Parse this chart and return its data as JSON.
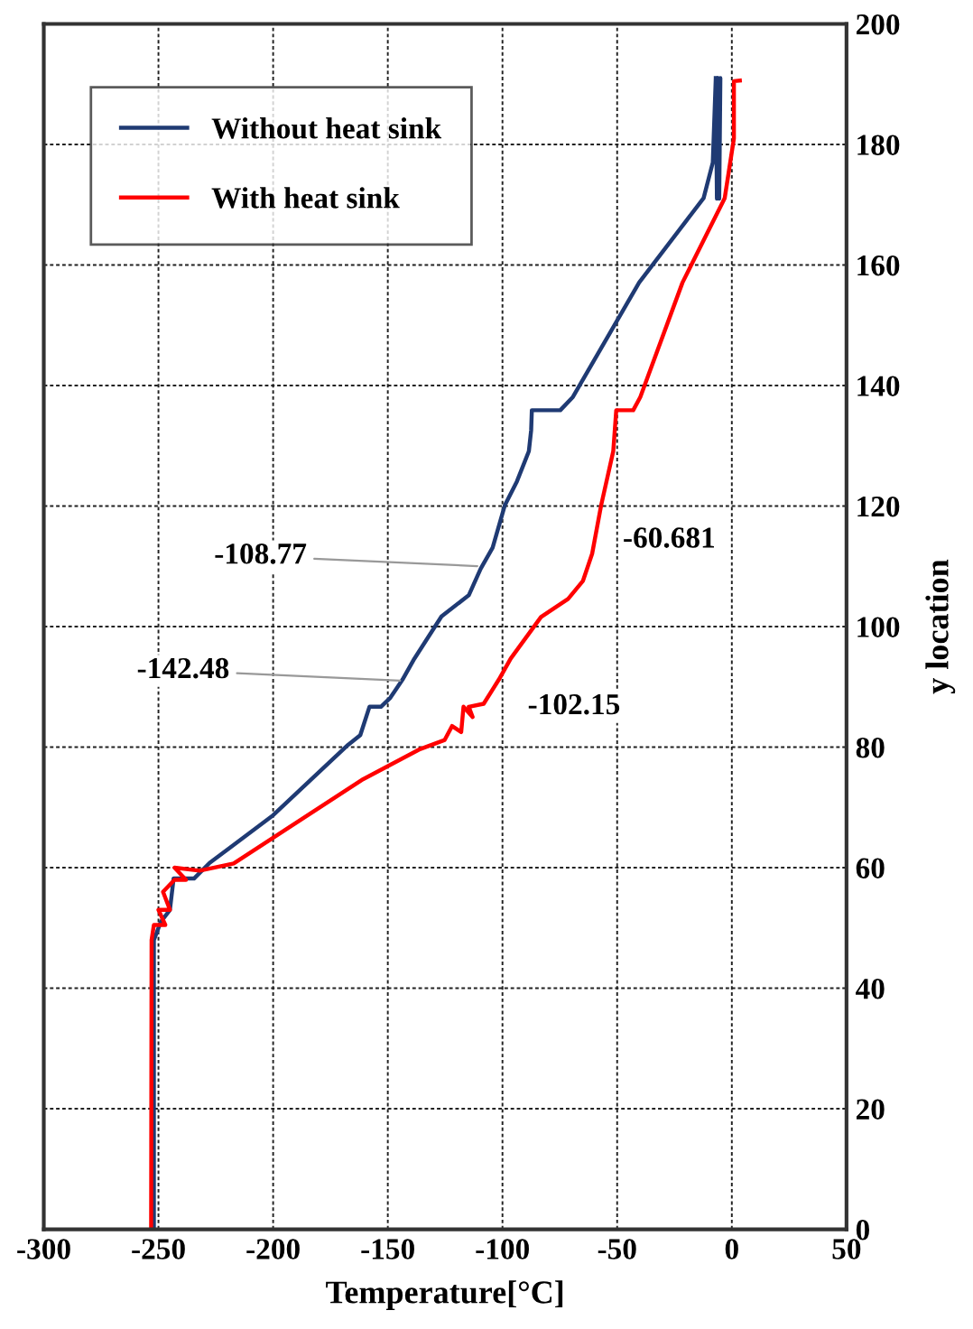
{
  "chart_data": {
    "type": "line",
    "xlabel": "Temperature[°C]",
    "ylabel": "y location",
    "xlim": [
      -300,
      50
    ],
    "ylim": [
      0,
      200
    ],
    "xticks": [
      -300,
      -250,
      -200,
      -150,
      -100,
      -50,
      0,
      50
    ],
    "yticks": [
      0,
      20,
      40,
      60,
      80,
      100,
      120,
      140,
      160,
      180,
      200
    ],
    "grid": true,
    "legend": "top left",
    "series": [
      {
        "name": "Without heat sink",
        "color": "#1f3a73",
        "x": [
          -252,
          -252,
          -249,
          -245,
          -243.4,
          -234.5,
          -227.7,
          -200,
          -167.3,
          -162,
          -158,
          -153,
          -148.9,
          -143.6,
          -138.4,
          -126.6,
          -114.7,
          -109.5,
          -104.3,
          -99,
          -93.7,
          -88.5,
          -87.5,
          -87.2,
          -74.8,
          -69.3,
          -40.4,
          -12.3,
          -8.3,
          -7,
          -6.5,
          -6,
          -5.5,
          -5,
          -5.5,
          -6,
          -6.5,
          -7
        ],
        "values": [
          0,
          48,
          51,
          53,
          58.2,
          58.2,
          60.8,
          68.7,
          80.4,
          82,
          86.7,
          86.7,
          88.2,
          91.2,
          94.7,
          101.7,
          105.2,
          109.6,
          113.1,
          120.1,
          124.1,
          129.1,
          132.6,
          135.9,
          135.9,
          138.1,
          157.1,
          171.1,
          177,
          191,
          171,
          191,
          171,
          191,
          171,
          191,
          171,
          191
        ]
      },
      {
        "name": "With heat sink",
        "color": "#ff0000",
        "x": [
          -253.2,
          -253,
          -252,
          -247,
          -250,
          -245,
          -248,
          -243,
          -238,
          -243,
          -232,
          -217.2,
          -160.7,
          -135.8,
          -125.2,
          -122,
          -118,
          -117,
          -113,
          -114.7,
          -108.2,
          -101.6,
          -96.4,
          -83.2,
          -71.4,
          -64.9,
          -60.9,
          -57,
          -51.7,
          -50.4,
          -43,
          -39.9,
          -21.5,
          -3.1,
          0.9,
          0.9,
          3.5
        ],
        "values": [
          0,
          48,
          50.5,
          50.5,
          53,
          53,
          56,
          58,
          58,
          60,
          59.5,
          60.7,
          74.7,
          79.7,
          81.2,
          83.5,
          82.5,
          86.7,
          85,
          86.7,
          87.2,
          91.2,
          94.7,
          101.6,
          104.6,
          107.6,
          112.1,
          120.1,
          129.1,
          135.9,
          135.9,
          138.1,
          157.1,
          171.1,
          181,
          190.5,
          190.6
        ]
      }
    ],
    "annotations": [
      {
        "text": "-108.77",
        "x": -108.77,
        "y": 110
      },
      {
        "text": "-142.48",
        "x": -142.48,
        "y": 91
      },
      {
        "text": "-60.681",
        "x": -60.681,
        "y": 111
      },
      {
        "text": "-102.15",
        "x": -102.15,
        "y": 90
      }
    ]
  }
}
